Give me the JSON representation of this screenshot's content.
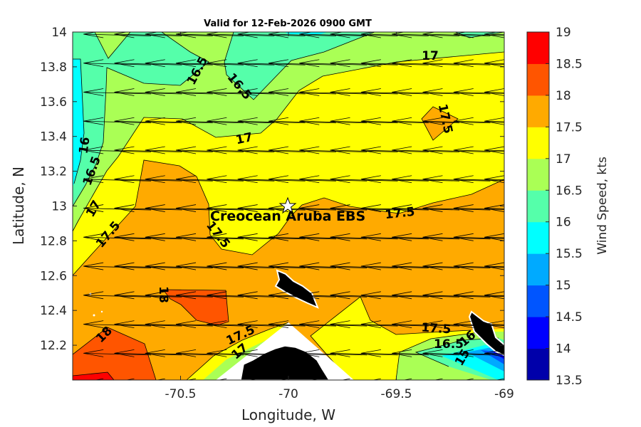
{
  "chart_data": {
    "type": "contour",
    "title": "Valid for 12-Feb-2026 0900 GMT",
    "xlabel": "Longitude, W",
    "ylabel": "Latitude, N",
    "xlim": [
      -71,
      -69
    ],
    "ylim": [
      12,
      14
    ],
    "xticks": [
      "-70.5",
      "-70",
      "-69.5",
      "-69"
    ],
    "xtick_values": [
      -70.5,
      -70,
      -69.5,
      -69
    ],
    "yticks": [
      "12.2",
      "12.4",
      "12.6",
      "12.8",
      "13",
      "13.2",
      "13.4",
      "13.6",
      "13.8",
      "14"
    ],
    "ytick_values": [
      12.2,
      12.4,
      12.6,
      12.8,
      13,
      13.2,
      13.4,
      13.6,
      13.8,
      14
    ],
    "colorbar": {
      "label": "Wind Speed, kts",
      "tick_labels": [
        "19",
        "18.5",
        "18",
        "17.5",
        "17",
        "16.5",
        "16",
        "15.5",
        "15",
        "14.5",
        "14",
        "13.5"
      ],
      "levels": [
        13.5,
        14,
        14.5,
        15,
        15.5,
        16,
        16.5,
        17,
        17.5,
        18,
        18.5,
        19
      ],
      "colors": [
        "#0000aa",
        "#0000ff",
        "#0055ff",
        "#00aaff",
        "#00ffff",
        "#55ffaa",
        "#aaff55",
        "#ffff00",
        "#ffaa00",
        "#ff5500",
        "#ff0000"
      ]
    },
    "contour_labels": [
      "16.5",
      "16.5",
      "17",
      "17.5",
      "17",
      "16",
      "16.5",
      "17",
      "17.5",
      "17.5",
      "17.5",
      "18",
      "18",
      "17.5",
      "17",
      "17.5",
      "16.5",
      "16",
      "15"
    ],
    "station": {
      "name": "Creocean Aruba EBS",
      "lon": -70.0,
      "lat": 13.0,
      "marker": "star-icon"
    },
    "wind": {
      "direction": "from east",
      "lon_step": 0.1429,
      "lat_step": 0.1667
    }
  }
}
